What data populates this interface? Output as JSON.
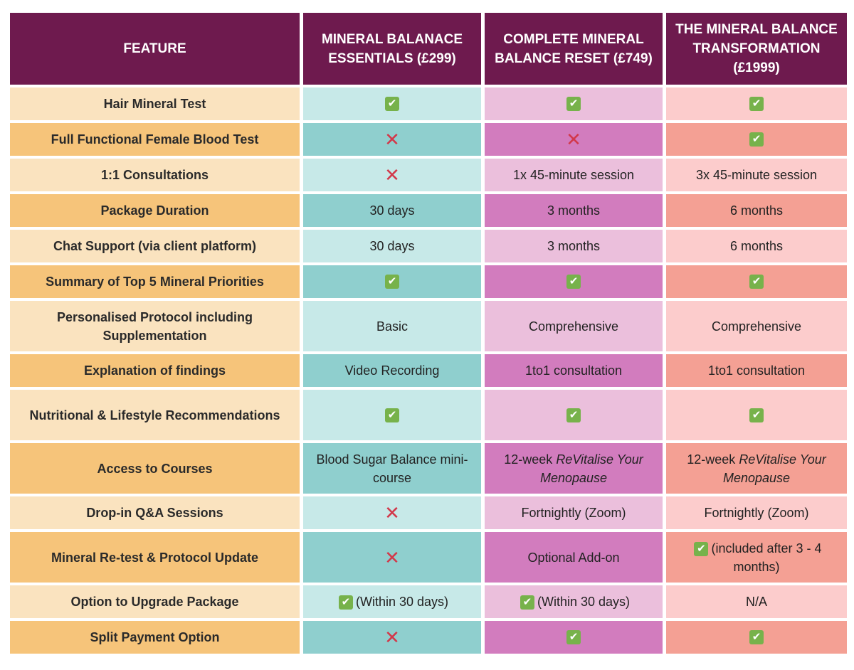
{
  "header": {
    "feature": "FEATURE",
    "p1": "MINERAL BALANACE ESSENTIALS (£299)",
    "p2": "COMPLETE MINERAL BALANCE RESET (£749)",
    "p3": "THE MINERAL BALANCE TRANSFORMATION (£1999)"
  },
  "icons": {
    "check": "check-icon",
    "cross": "cross-icon"
  },
  "colors": {
    "header_bg": "#6e1a4e",
    "check": "#77b24b",
    "cross": "#d2384a"
  },
  "rows": [
    {
      "feature": "Hair Mineral Test",
      "c1_icon": "check",
      "c2_icon": "check",
      "c3_icon": "check"
    },
    {
      "feature": "Full Functional Female Blood Test",
      "c1_icon": "cross",
      "c2_icon": "cross",
      "c3_icon": "check"
    },
    {
      "feature": "1:1 Consultations",
      "c1_icon": "cross",
      "c2": "1x 45-minute session",
      "c3": "3x 45-minute session"
    },
    {
      "feature": "Package Duration",
      "c1": "30 days",
      "c2": "3 months",
      "c3": "6 months"
    },
    {
      "feature": "Chat Support (via client platform)",
      "c1": "30 days",
      "c2": "3 months",
      "c3": "6 months"
    },
    {
      "feature": "Summary of Top 5 Mineral Priorities",
      "c1_icon": "check",
      "c2_icon": "check",
      "c3_icon": "check"
    },
    {
      "feature": "Personalised Protocol including Supplementation",
      "c1": "Basic",
      "c2": "Comprehensive",
      "c3": "Comprehensive"
    },
    {
      "feature": "Explanation of findings",
      "c1": "Video Recording",
      "c2": "1to1 consultation",
      "c3": "1to1 consultation"
    },
    {
      "feature": "Nutritional & Lifestyle Recommendations",
      "c1_icon": "check",
      "c2_icon": "check",
      "c3_icon": "check"
    },
    {
      "feature": "Access to Courses",
      "c1": "Blood Sugar Balance mini-course",
      "c2_prefix": "12-week ",
      "c2_italic": "ReVitalise Your Menopause",
      "c3_prefix": "12-week ",
      "c3_italic": "ReVitalise Your Menopause"
    },
    {
      "feature": "Drop-in Q&A Sessions",
      "c1_icon": "cross",
      "c2": "Fortnightly (Zoom)",
      "c3": "Fortnightly (Zoom)"
    },
    {
      "feature": "Mineral Re-test & Protocol Update",
      "c1_icon": "cross",
      "c2": "Optional Add-on",
      "c3_icon": "check",
      "c3": "(included after 3 - 4 months)"
    },
    {
      "feature": "Option to Upgrade Package",
      "c1_icon": "check",
      "c1": "(Within 30 days)",
      "c2_icon": "check",
      "c2": "(Within 30 days)",
      "c3": "N/A"
    },
    {
      "feature": "Split Payment Option",
      "c1_icon": "cross",
      "c2_icon": "check",
      "c3_icon": "check"
    }
  ]
}
